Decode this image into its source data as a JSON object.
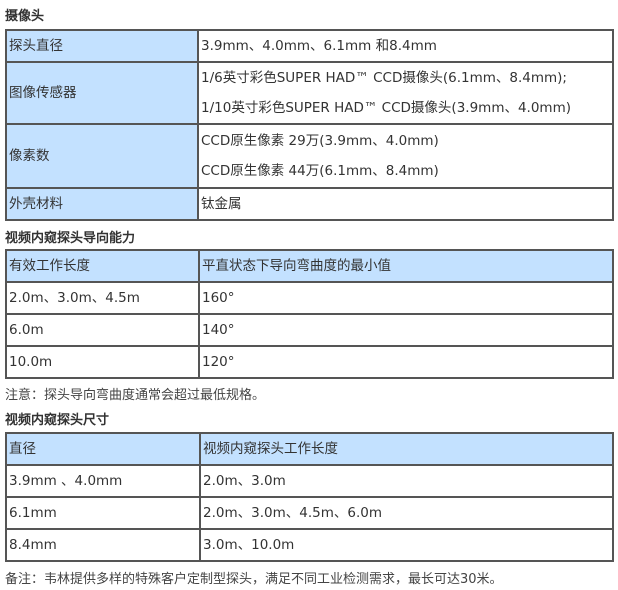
{
  "camera": {
    "title": "摄像头",
    "rows": [
      {
        "label": "探头直径",
        "values": [
          "3.9mm、4.0mm、6.1mm 和8.4mm"
        ]
      },
      {
        "label": "图像传感器",
        "values": [
          "1/6英寸彩色SUPER HAD™ CCD摄像头(6.1mm、8.4mm);",
          "1/10英寸彩色SUPER HAD™ CCD摄像头(3.9mm、4.0mm)"
        ]
      },
      {
        "label": "像素数",
        "values": [
          "CCD原生像素 29万(3.9mm、4.0mm)",
          "CCD原生像素 44万(6.1mm、8.4mm)"
        ]
      },
      {
        "label": "外壳材料",
        "values": [
          "钛金属"
        ]
      }
    ]
  },
  "articulation": {
    "title": "视频内窥探头导向能力",
    "headers": [
      "有效工作长度",
      "平直状态下导向弯曲度的最小值"
    ],
    "rows": [
      [
        "2.0m、3.0m、4.5m",
        "160°"
      ],
      [
        "6.0m",
        "140°"
      ],
      [
        "10.0m",
        "120°"
      ]
    ],
    "note": "注意：探头导向弯曲度通常会超过最低规格。"
  },
  "dimensions": {
    "title": "视频内窥探头尺寸",
    "headers": [
      "直径",
      "视频内窥探头工作长度"
    ],
    "rows": [
      [
        "3.9mm 、4.0mm",
        "2.0m、3.0m"
      ],
      [
        "6.1mm",
        "2.0m、3.0m、4.5m、6.0m"
      ],
      [
        "8.4mm",
        "3.0m、10.0m"
      ]
    ],
    "note": "备注：韦林提供多样的特殊客户定制型探头，满足不同工业检测需求，最长可达30米。"
  },
  "colors": {
    "header_fill": "#c3e1ff",
    "border": "#555555"
  }
}
